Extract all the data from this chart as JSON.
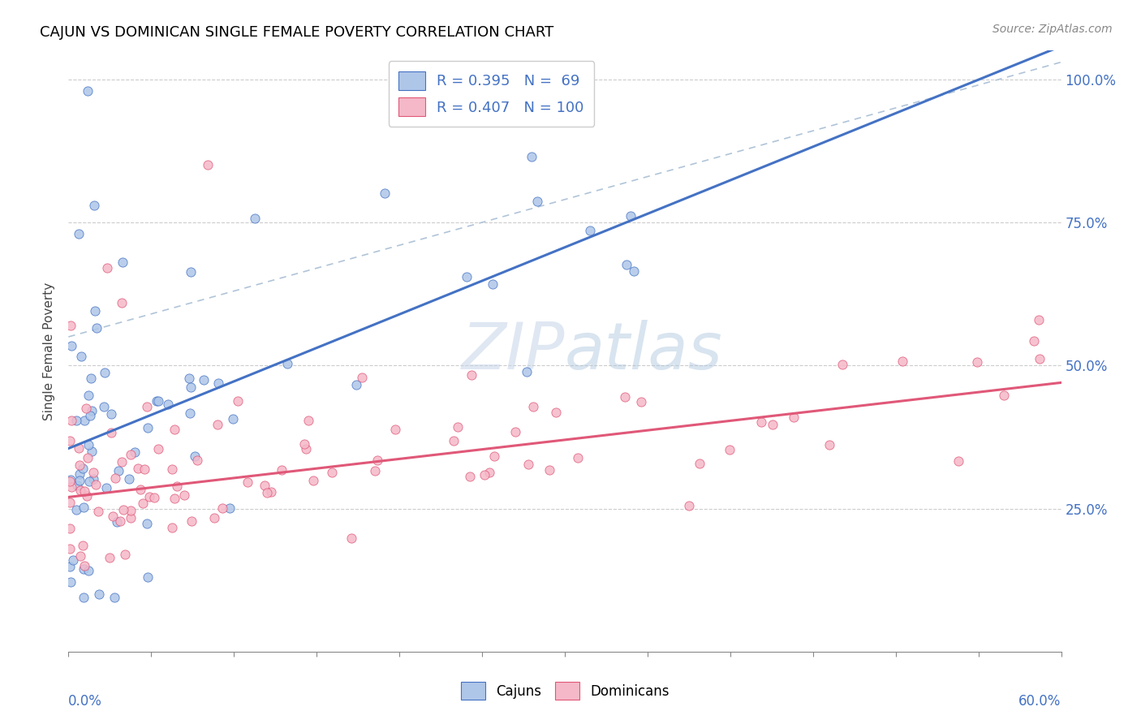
{
  "title": "CAJUN VS DOMINICAN SINGLE FEMALE POVERTY CORRELATION CHART",
  "source": "Source: ZipAtlas.com",
  "ylabel": "Single Female Poverty",
  "ytick_labels": [
    "25.0%",
    "50.0%",
    "75.0%",
    "100.0%"
  ],
  "cajun_R": 0.395,
  "cajun_N": 69,
  "dominican_R": 0.407,
  "dominican_N": 100,
  "cajun_color": "#aec6e8",
  "dominican_color": "#f5b8c8",
  "cajun_line_color": "#4472c4",
  "dominican_line_color": "#e05878",
  "diagonal_color": "#b0c4d8",
  "watermark_zip": "ZIP",
  "watermark_atlas": "atlas",
  "xlim": [
    0.0,
    0.6
  ],
  "ylim": [
    0.0,
    1.05
  ],
  "y_ticks": [
    0.25,
    0.5,
    0.75,
    1.0
  ],
  "legend_color": "#4472c4"
}
